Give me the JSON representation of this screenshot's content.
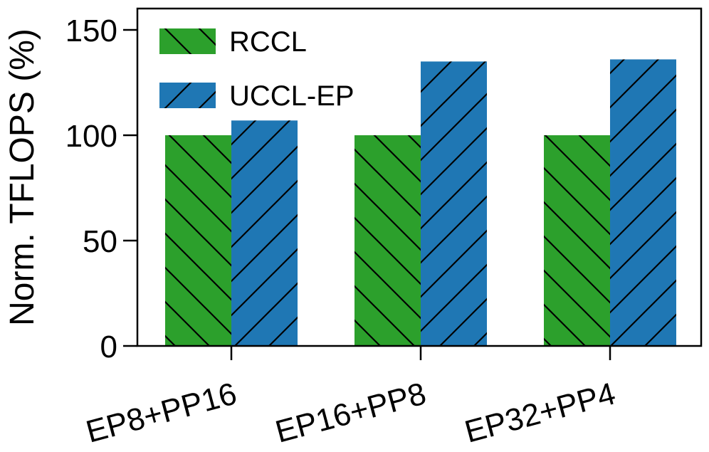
{
  "chart_data": {
    "type": "bar",
    "title": "",
    "xlabel": "",
    "ylabel": "Norm. TFLOPS (%)",
    "categories": [
      "EP8+PP16",
      "EP16+PP8",
      "EP32+PP4"
    ],
    "series": [
      {
        "name": "RCCL",
        "values": [
          100,
          100,
          100
        ],
        "color": "#2ca02c",
        "hatch": "backslash"
      },
      {
        "name": "UCCL-EP",
        "values": [
          107,
          135,
          136
        ],
        "color": "#1f77b4",
        "hatch": "slash"
      }
    ],
    "ylim": [
      0,
      150
    ],
    "yticks": [
      0,
      50,
      100,
      150
    ],
    "grid": false,
    "legend_position": "top-left"
  }
}
